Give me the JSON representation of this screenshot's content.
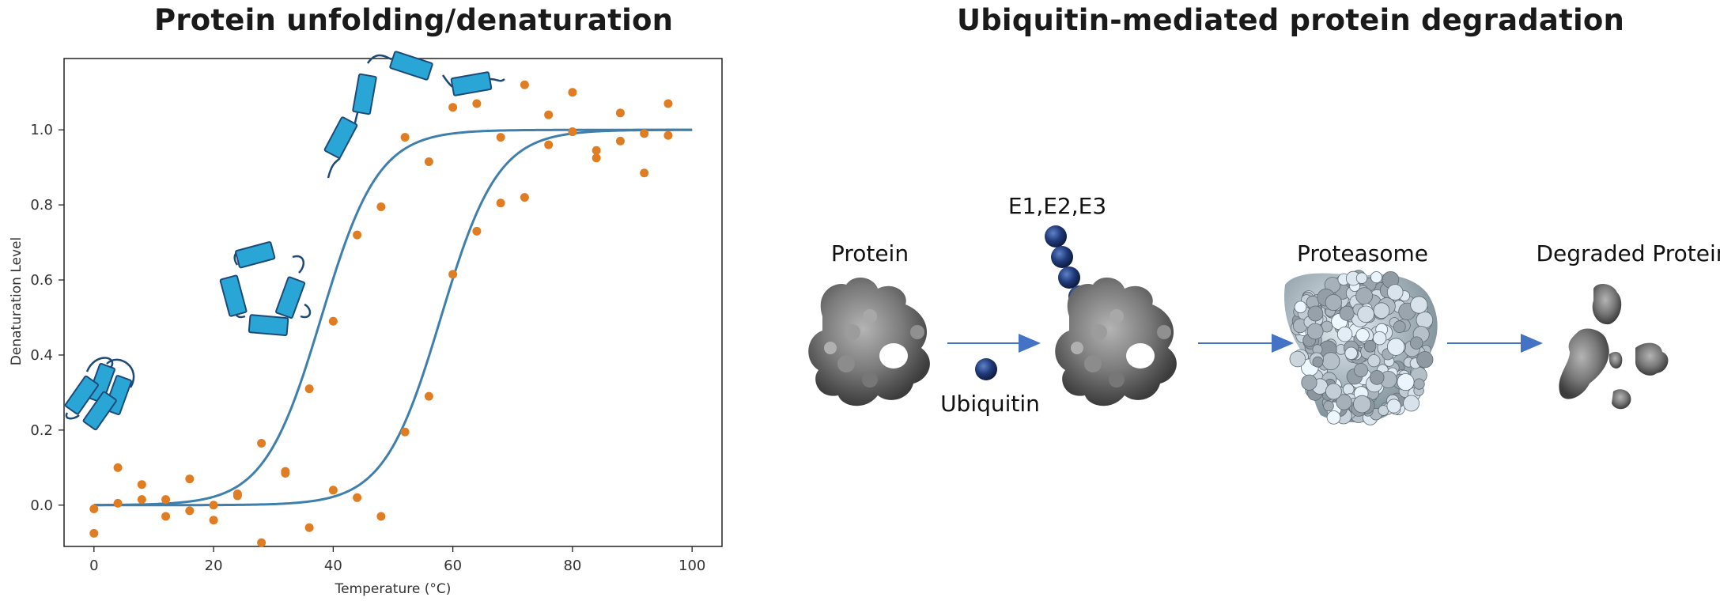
{
  "left_panel": {
    "title": "Protein unfolding/denaturation",
    "chart_data": {
      "type": "scatter",
      "xlabel": "Temperature (°C)",
      "ylabel": "Denaturation Level",
      "xlim": [
        -5,
        105
      ],
      "ylim": [
        -0.11,
        1.19
      ],
      "xticks": [
        "0",
        "20",
        "40",
        "60",
        "80",
        "100"
      ],
      "yticks": [
        "0.0",
        "0.2",
        "0.4",
        "0.6",
        "0.8",
        "1.0"
      ],
      "xtick_values": [
        0,
        20,
        40,
        60,
        80,
        100
      ],
      "ytick_values": [
        0.0,
        0.2,
        0.4,
        0.6,
        0.8,
        1.0
      ],
      "point_color": "#e07d22",
      "curve_color": "#3f7fab",
      "points": [
        [
          0,
          -0.01
        ],
        [
          0,
          -0.075
        ],
        [
          4,
          0.1
        ],
        [
          4,
          0.005
        ],
        [
          8,
          0.055
        ],
        [
          8,
          0.015
        ],
        [
          12,
          0.015
        ],
        [
          12,
          -0.03
        ],
        [
          16,
          0.07
        ],
        [
          16,
          -0.015
        ],
        [
          20,
          -0.04
        ],
        [
          20,
          0.0
        ],
        [
          24,
          0.025
        ],
        [
          24,
          0.03
        ],
        [
          28,
          0.165
        ],
        [
          28,
          -0.1
        ],
        [
          32,
          0.085
        ],
        [
          32,
          0.09
        ],
        [
          36,
          0.31
        ],
        [
          36,
          -0.06
        ],
        [
          40,
          0.49
        ],
        [
          40,
          0.04
        ],
        [
          44,
          0.72
        ],
        [
          44,
          0.02
        ],
        [
          48,
          0.795
        ],
        [
          48,
          -0.03
        ],
        [
          52,
          0.98
        ],
        [
          52,
          0.195
        ],
        [
          56,
          0.915
        ],
        [
          56,
          0.29
        ],
        [
          60,
          1.06
        ],
        [
          60,
          0.615
        ],
        [
          64,
          1.07
        ],
        [
          64,
          0.73
        ],
        [
          68,
          0.98
        ],
        [
          68,
          0.805
        ],
        [
          72,
          1.12
        ],
        [
          72,
          0.82
        ],
        [
          76,
          1.04
        ],
        [
          76,
          0.96
        ],
        [
          80,
          1.1
        ],
        [
          80,
          0.995
        ],
        [
          84,
          0.945
        ],
        [
          84,
          0.925
        ],
        [
          88,
          1.045
        ],
        [
          88,
          0.97
        ],
        [
          92,
          0.99
        ],
        [
          92,
          0.885
        ],
        [
          96,
          1.07
        ],
        [
          96,
          0.985
        ]
      ],
      "curves": [
        {
          "midpoint": 38,
          "slope": 0.21
        },
        {
          "midpoint": 58,
          "slope": 0.21
        }
      ]
    },
    "cartoon_color": "#2aa6d6"
  },
  "right_panel": {
    "title": "Ubiquitin-mediated protein degradation",
    "labels": {
      "protein": "Protein",
      "enzymes": "E1,E2,E3",
      "proteasome": "Proteasome",
      "degraded": "Degraded Protein",
      "ubiquitin": "Ubiquitin"
    },
    "arrow_color": "#4472c4",
    "ubiquitin_color": "#213b7a"
  }
}
